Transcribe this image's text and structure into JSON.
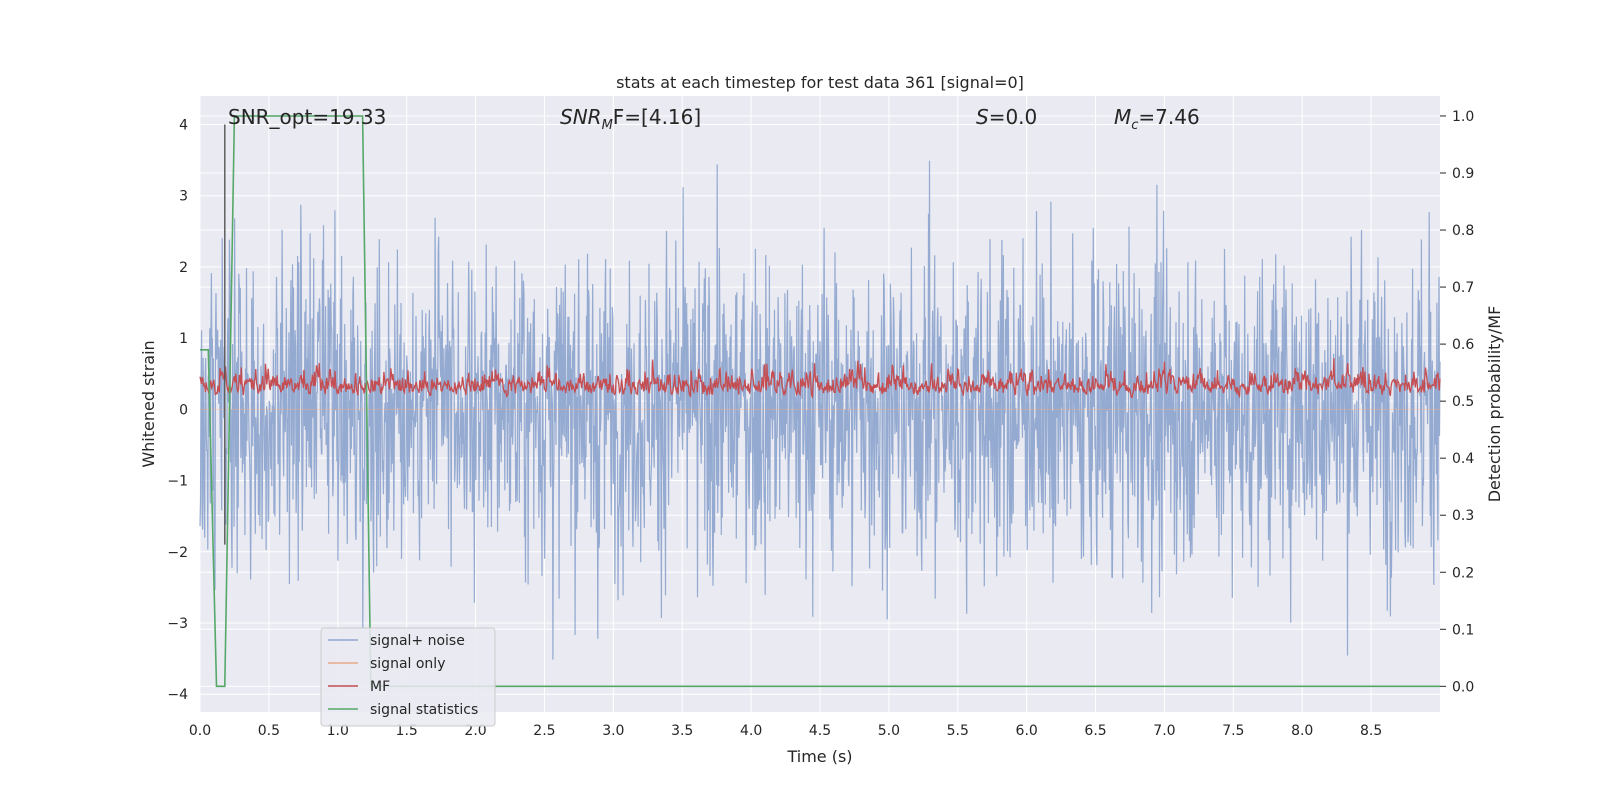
{
  "chart_data": {
    "type": "line",
    "title": "stats at each timestep for test data 361 [signal=0]",
    "xlabel": "Time (s)",
    "ylabel": "Whitened strain",
    "ylabel_right": "Detection probability/MF",
    "xlim": [
      0,
      9.0
    ],
    "ylim": [
      -4.25,
      4.4
    ],
    "ylim_right": [
      -0.045,
      1.035
    ],
    "x_ticks": [
      "0.0",
      "0.5",
      "1.0",
      "1.5",
      "2.0",
      "2.5",
      "3.0",
      "3.5",
      "4.0",
      "4.5",
      "5.0",
      "5.5",
      "6.0",
      "6.5",
      "7.0",
      "7.5",
      "8.0",
      "8.5"
    ],
    "y_ticks": [
      "4",
      "3",
      "2",
      "1",
      "0",
      "−1",
      "−2",
      "−3",
      "−4"
    ],
    "y_ticks_right": [
      "1.0",
      "0.9",
      "0.8",
      "0.7",
      "0.6",
      "0.5",
      "0.4",
      "0.3",
      "0.2",
      "0.1",
      "0.0"
    ],
    "grid": true,
    "legend_position": "lower-left",
    "annotations": {
      "snr_opt": "SNR_opt=19.33",
      "snr_mf_sym": "SNR",
      "snr_mf_sub": "M",
      "snr_mf_rest": "F=[4.16]",
      "s_sym": "S",
      "s_rest": "=0.0",
      "mc_sym": "M",
      "mc_sub": "c",
      "mc_rest": "=7.46"
    },
    "series": [
      {
        "name": "signal+ noise",
        "color": "#8fa6cf",
        "axis": "left",
        "description_values": {
          "typical_envelope": [
            -2.4,
            2.4
          ],
          "max": 3.9,
          "min": -3.9
        }
      },
      {
        "name": "signal only",
        "color": "#e8a98a",
        "axis": "left",
        "description_values": {
          "constant": 0
        }
      },
      {
        "name": "MF",
        "color": "#c44e52",
        "axis": "right",
        "description_values": {
          "baseline": 0.5,
          "typical_range": [
            0.5,
            0.6
          ],
          "max": 0.61
        }
      },
      {
        "name": "signal statistics",
        "color": "#55a868",
        "axis": "right",
        "points": [
          [
            0.0,
            0.59
          ],
          [
            0.06,
            0.59
          ],
          [
            0.12,
            0.0
          ],
          [
            0.18,
            0.0
          ],
          [
            0.25,
            1.0
          ],
          [
            1.18,
            1.0
          ],
          [
            1.24,
            0.0
          ],
          [
            9.0,
            0.0
          ]
        ]
      }
    ],
    "marker_line": {
      "x": 0.18,
      "y_range": [
        -1.9,
        4.0
      ],
      "color": "#555555"
    }
  }
}
